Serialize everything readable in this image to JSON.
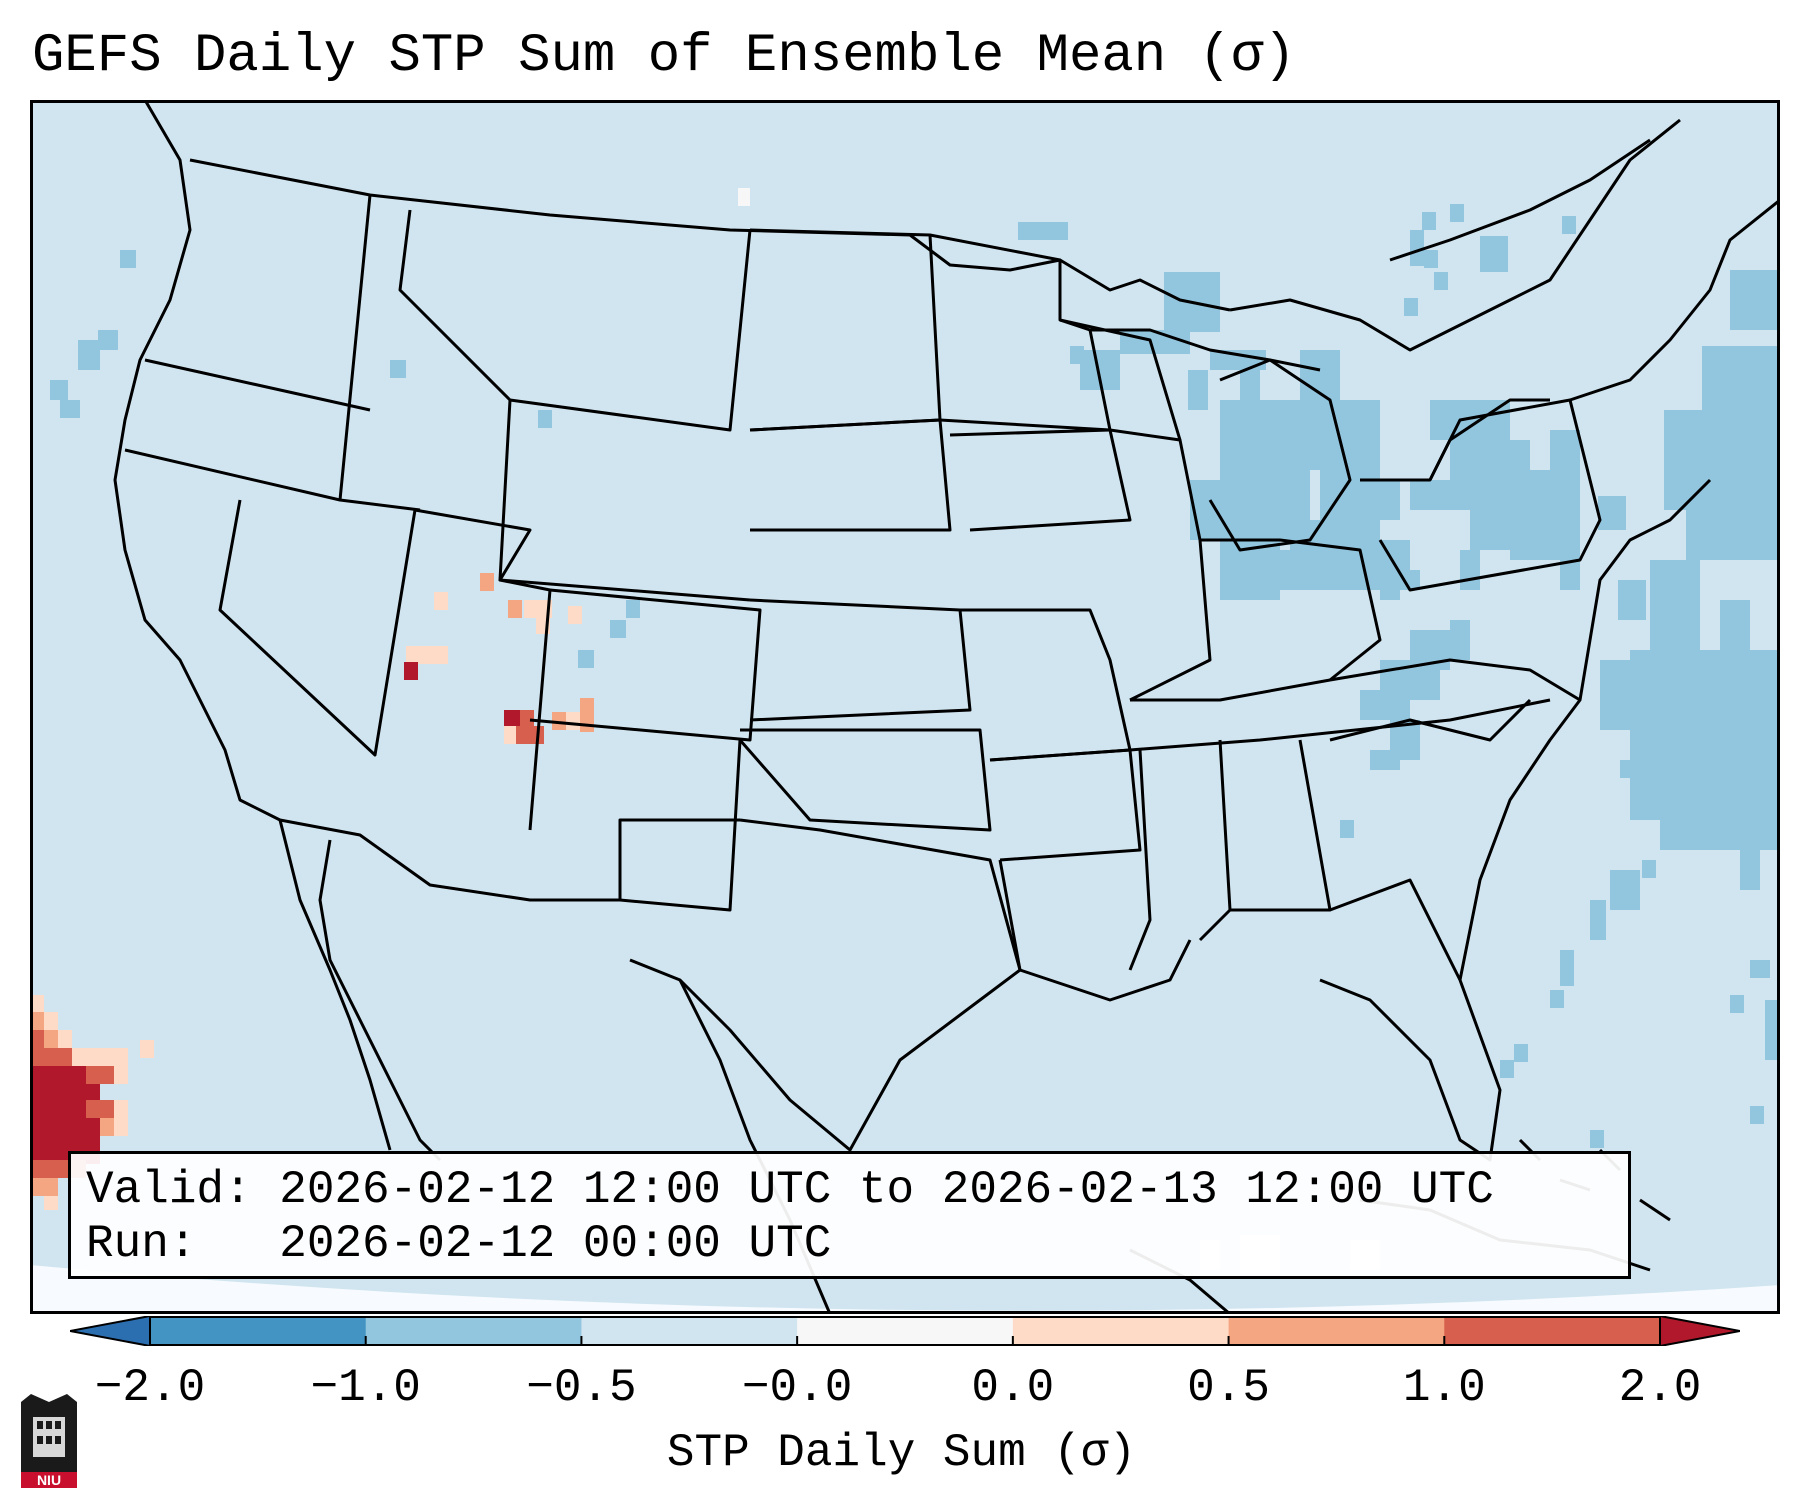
{
  "title": "GEFS Daily STP Sum of Ensemble Mean (σ)",
  "legend": {
    "valid": "Valid: 2026-02-12 12:00 UTC to 2026-02-13 12:00 UTC",
    "run": "Run:   2026-02-12 00:00 UTC"
  },
  "colorbar": {
    "label": "STP Daily Sum (σ)",
    "ticks": [
      "−2.0",
      "−1.0",
      "−0.5",
      "−0.0",
      "0.0",
      "0.5",
      "1.0",
      "2.0"
    ],
    "colors": [
      "#2c6fb1",
      "#4393c3",
      "#92c5de",
      "#d1e5f0",
      "#f7f7f7",
      "#fddbc7",
      "#f4a582",
      "#d6604d",
      "#b2182b"
    ]
  },
  "map": {
    "background_color": "#d1e5f0",
    "outside_color": "#f7fbff",
    "line_color": "#000000"
  },
  "logo": {
    "text": "NIU"
  }
}
